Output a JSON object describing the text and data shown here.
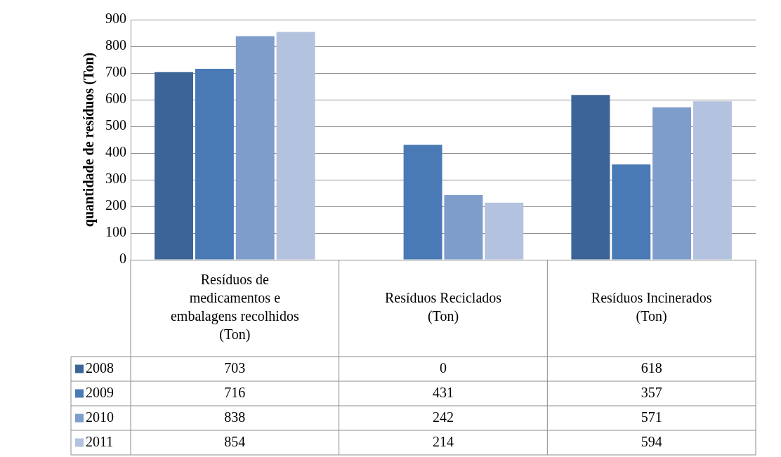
{
  "chart_data": {
    "type": "bar",
    "ylabel": "quantidade de resíduos (Ton)",
    "categories": [
      "Resíduos de medicamentos e embalagens recolhidos (Ton)",
      "Resíduos Reciclados (Ton)",
      "Resíduos Incinerados (Ton)"
    ],
    "series": [
      {
        "name": "2008",
        "color": "#3d6497",
        "values": [
          703,
          0,
          618
        ]
      },
      {
        "name": "2009",
        "color": "#4a7ab5",
        "values": [
          716,
          431,
          357
        ]
      },
      {
        "name": "2010",
        "color": "#7e9dcb",
        "values": [
          838,
          242,
          571
        ]
      },
      {
        "name": "2011",
        "color": "#b3c2de",
        "values": [
          854,
          214,
          594
        ]
      }
    ],
    "ylim": [
      0,
      900
    ],
    "yticks": [
      0,
      100,
      200,
      300,
      400,
      500,
      600,
      700,
      800,
      900
    ],
    "grid": "y",
    "legend": "bottom left",
    "data_labels": true
  }
}
